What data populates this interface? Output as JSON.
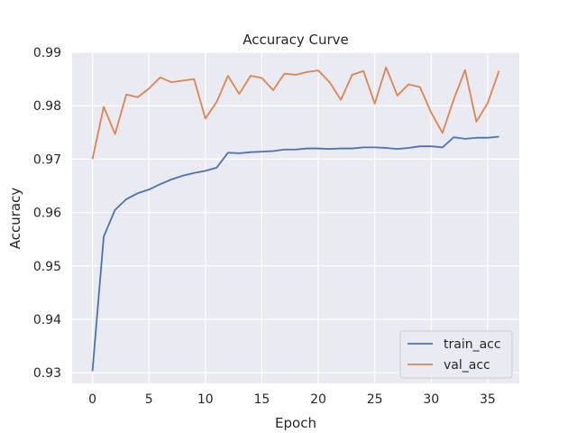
{
  "chart_data": {
    "type": "line",
    "title": "Accuracy Curve",
    "xlabel": "Epoch",
    "ylabel": "Accuracy",
    "xlim": [
      -1.8,
      37.8
    ],
    "ylim": [
      0.928,
      0.99
    ],
    "xticks": [
      0,
      5,
      10,
      15,
      20,
      25,
      30,
      35
    ],
    "xtick_labels": [
      "0",
      "5",
      "10",
      "15",
      "20",
      "25",
      "30",
      "35"
    ],
    "yticks": [
      0.93,
      0.94,
      0.95,
      0.96,
      0.97,
      0.98,
      0.99
    ],
    "ytick_labels": [
      "0.93",
      "0.94",
      "0.95",
      "0.96",
      "0.97",
      "0.98",
      "0.99"
    ],
    "grid": true,
    "legend_position": "bottom-right",
    "x": [
      0,
      1,
      2,
      3,
      4,
      5,
      6,
      7,
      8,
      9,
      10,
      11,
      12,
      13,
      14,
      15,
      16,
      17,
      18,
      19,
      20,
      21,
      22,
      23,
      24,
      25,
      26,
      27,
      28,
      29,
      30,
      31,
      32,
      33,
      34,
      35,
      36
    ],
    "series": [
      {
        "name": "train_acc",
        "color": "#4c72b0",
        "values": [
          0.9303,
          0.9555,
          0.9605,
          0.9625,
          0.9636,
          0.9643,
          0.9653,
          0.9662,
          0.9669,
          0.9674,
          0.9678,
          0.9684,
          0.9712,
          0.9711,
          0.9713,
          0.9714,
          0.9715,
          0.9718,
          0.9718,
          0.972,
          0.972,
          0.9719,
          0.972,
          0.972,
          0.9722,
          0.9722,
          0.9721,
          0.9719,
          0.9721,
          0.9724,
          0.9724,
          0.9722,
          0.9741,
          0.9738,
          0.974,
          0.974,
          0.9742
        ]
      },
      {
        "name": "val_acc",
        "color": "#dd8452",
        "values": [
          0.97,
          0.9798,
          0.9747,
          0.9821,
          0.9816,
          0.9832,
          0.9853,
          0.9844,
          0.9847,
          0.985,
          0.9776,
          0.9807,
          0.9856,
          0.9822,
          0.9856,
          0.9852,
          0.9829,
          0.986,
          0.9858,
          0.9863,
          0.9866,
          0.9844,
          0.9811,
          0.9858,
          0.9865,
          0.9804,
          0.9872,
          0.9819,
          0.984,
          0.9835,
          0.9787,
          0.9749,
          0.9812,
          0.9867,
          0.977,
          0.9805,
          0.9865
        ]
      }
    ]
  }
}
